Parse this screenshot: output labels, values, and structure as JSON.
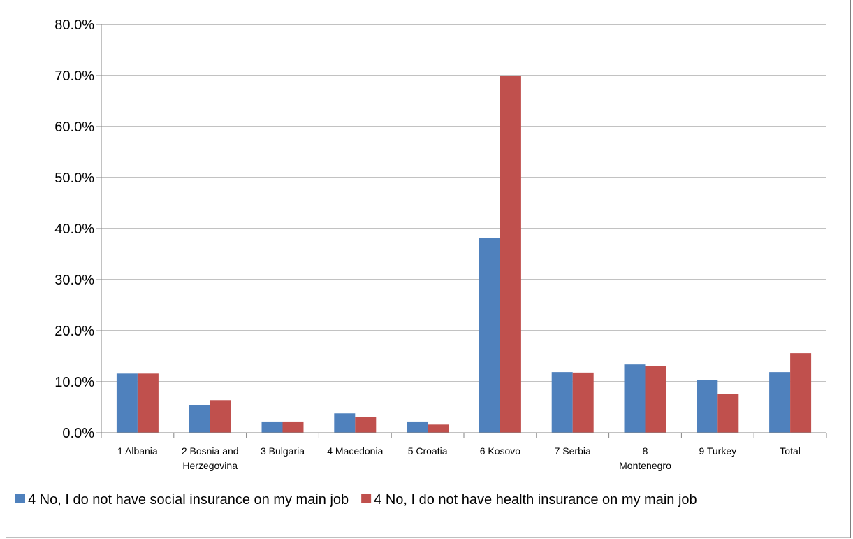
{
  "chart_data": {
    "type": "bar",
    "title": "",
    "xlabel": "",
    "ylabel": "",
    "categories": [
      [
        "1 Albania"
      ],
      [
        "2 Bosnia and",
        "Herzegovina"
      ],
      [
        "3 Bulgaria"
      ],
      [
        "4 Macedonia"
      ],
      [
        "5 Croatia"
      ],
      [
        "6 Kosovo"
      ],
      [
        "7 Serbia"
      ],
      [
        "8",
        "Montenegro"
      ],
      [
        "9 Turkey"
      ],
      [
        "Total"
      ]
    ],
    "series": [
      {
        "name": "4 No, I do not have social insurance on my main job",
        "color": "#4F81BD",
        "values": [
          11.6,
          5.4,
          2.2,
          3.8,
          2.2,
          38.2,
          11.9,
          13.4,
          10.3,
          11.9
        ]
      },
      {
        "name": "4 No, I do not have health insurance on my main job",
        "color": "#C0504D",
        "values": [
          11.6,
          6.4,
          2.2,
          3.1,
          1.6,
          70.0,
          11.8,
          13.1,
          7.6,
          15.6
        ]
      }
    ],
    "ylim": [
      0,
      80
    ],
    "yticks": [
      "0.0%",
      "10.0%",
      "20.0%",
      "30.0%",
      "40.0%",
      "50.0%",
      "60.0%",
      "70.0%",
      "80.0%"
    ],
    "grid": true,
    "legend_position": "bottom"
  }
}
